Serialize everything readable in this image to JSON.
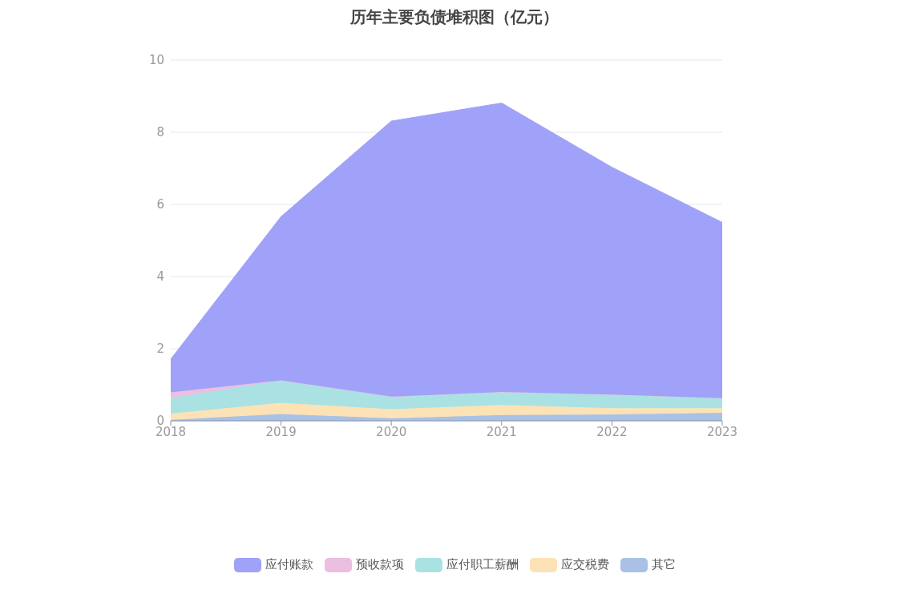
{
  "chart_data": {
    "type": "area",
    "title": "历年主要负债堆积图（亿元）",
    "categories": [
      "2018",
      "2019",
      "2020",
      "2021",
      "2022",
      "2023"
    ],
    "stacked": true,
    "series": [
      {
        "name": "其它",
        "color": "#a9c1e6",
        "values": [
          0.03,
          0.19,
          0.07,
          0.16,
          0.18,
          0.22
        ]
      },
      {
        "name": "应交税费",
        "color": "#fde2b6",
        "values": [
          0.17,
          0.31,
          0.25,
          0.28,
          0.17,
          0.13
        ]
      },
      {
        "name": "应付职工薪酬",
        "color": "#aae2e3",
        "values": [
          0.44,
          0.62,
          0.35,
          0.36,
          0.38,
          0.28
        ]
      },
      {
        "name": "预收款项",
        "color": "#eabfe0",
        "values": [
          0.15,
          0,
          0,
          0,
          0,
          0
        ]
      },
      {
        "name": "应付账款",
        "color": "#a0a1f8",
        "values": [
          0.92,
          4.54,
          7.64,
          8.01,
          6.3,
          4.87
        ]
      }
    ],
    "ylim": [
      0,
      10
    ],
    "yticks": [
      0,
      2,
      4,
      6,
      8,
      10
    ],
    "grid": "y",
    "legend": "bottom",
    "marker": "none"
  }
}
